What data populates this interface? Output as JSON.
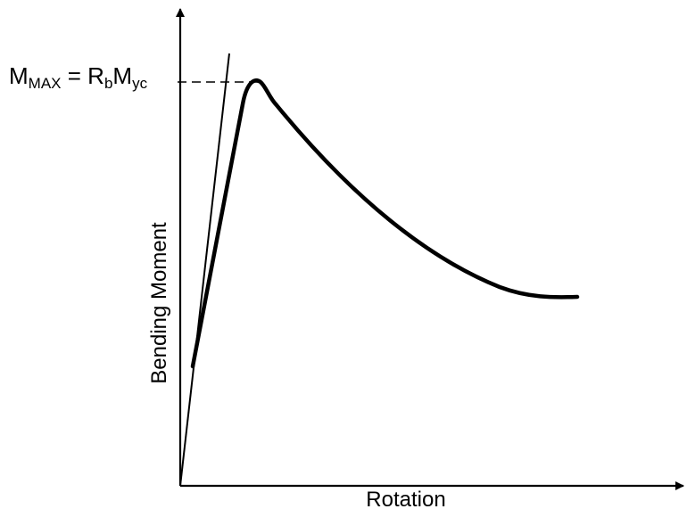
{
  "diagram": {
    "y_axis_label": "Bending Moment",
    "x_axis_label": "Rotation",
    "mmax_label": {
      "m1": "M",
      "sub1": "MAX",
      "eq": " = R",
      "sub2": "b",
      "m2": "M",
      "sub3": "yc"
    },
    "line_color": "#000000",
    "background": "#ffffff"
  }
}
